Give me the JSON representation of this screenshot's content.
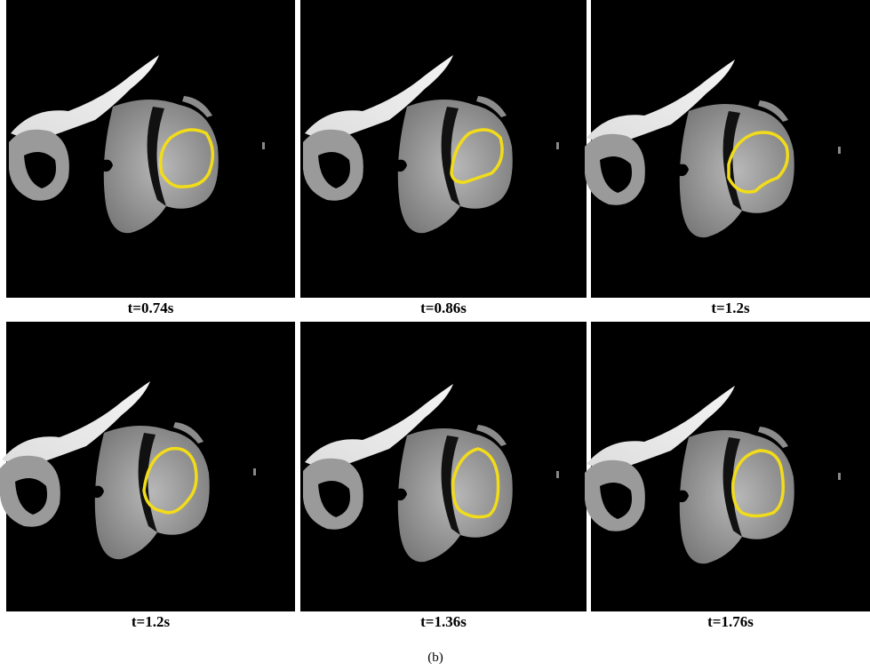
{
  "panels": [
    {
      "label": "t=0.74s"
    },
    {
      "label": "t=0.86s"
    },
    {
      "label": "t=1.2s"
    },
    {
      "label": "t=1.2s"
    },
    {
      "label": "t=1.36s"
    },
    {
      "label": "t=1.76s"
    }
  ],
  "caption": "(b)"
}
